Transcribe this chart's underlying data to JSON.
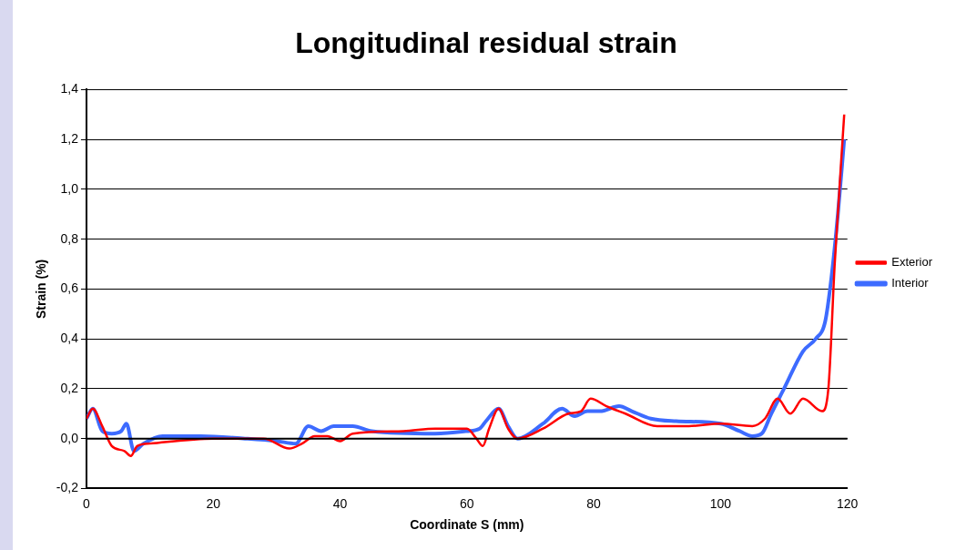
{
  "chart_data": {
    "type": "line",
    "title": "Longitudinal residual strain",
    "xlabel": "Coordinate S (mm)",
    "ylabel": "Strain (%)",
    "xlim": [
      0,
      120
    ],
    "xticks": [
      0,
      20,
      40,
      60,
      80,
      100,
      120
    ],
    "ylim": [
      -0.2,
      1.4
    ],
    "yticks": [
      {
        "value": -0.2,
        "label": "-0,2"
      },
      {
        "value": 0,
        "label": "0,0"
      },
      {
        "value": 0.2,
        "label": "0,2"
      },
      {
        "value": 0.4,
        "label": "0,4"
      },
      {
        "value": 0.6,
        "label": "0,6"
      },
      {
        "value": 0.8,
        "label": "0,8"
      },
      {
        "value": 1.0,
        "label": "1,0"
      },
      {
        "value": 1.2,
        "label": "1,2"
      },
      {
        "value": 1.4,
        "label": "1,4"
      }
    ],
    "grid": "y",
    "legend": "right",
    "marker": "none",
    "line_style": "solid",
    "series": [
      {
        "name": "Interior",
        "color": "#3d6bff",
        "x": [
          0,
          1,
          2.5,
          4,
          5.5,
          6.3,
          7.5,
          9,
          12,
          18,
          25,
          30,
          33,
          35,
          37,
          39,
          42,
          45,
          55,
          60,
          62,
          63,
          65,
          66.5,
          68,
          72,
          75,
          77,
          79,
          81,
          84,
          86,
          89,
          93,
          100,
          103,
          105,
          106.5,
          108,
          110,
          113,
          115,
          116.5,
          117.5,
          118.5,
          119.5
        ],
        "values": [
          0.08,
          0.12,
          0.03,
          0.02,
          0.03,
          0.06,
          -0.05,
          -0.02,
          0.01,
          0.01,
          0,
          -0.01,
          -0.02,
          0.05,
          0.03,
          0.05,
          0.05,
          0.03,
          0.02,
          0.03,
          0.04,
          0.07,
          0.12,
          0.05,
          0,
          0.06,
          0.12,
          0.09,
          0.11,
          0.11,
          0.13,
          0.11,
          0.08,
          0.07,
          0.06,
          0.03,
          0.01,
          0.02,
          0.1,
          0.2,
          0.35,
          0.4,
          0.47,
          0.65,
          0.9,
          1.2
        ]
      },
      {
        "name": "Exterior",
        "color": "#ff0000",
        "x": [
          0,
          1,
          2.5,
          4,
          6,
          7,
          8,
          10,
          20,
          28,
          32,
          34,
          36,
          38,
          40,
          42,
          50,
          55,
          60,
          61.5,
          62.5,
          63.5,
          65,
          66.5,
          68,
          72,
          76,
          78,
          79.5,
          82,
          85,
          90,
          95,
          100,
          105,
          107,
          109,
          111,
          113,
          116,
          117,
          118,
          119.5
        ],
        "values": [
          0.08,
          0.12,
          0.05,
          -0.03,
          -0.05,
          -0.07,
          -0.03,
          -0.02,
          0,
          0,
          -0.04,
          -0.02,
          0.01,
          0.01,
          -0.01,
          0.02,
          0.03,
          0.04,
          0.04,
          0,
          -0.03,
          0.04,
          0.12,
          0.04,
          0,
          0.04,
          0.1,
          0.11,
          0.16,
          0.13,
          0.1,
          0.05,
          0.05,
          0.06,
          0.05,
          0.08,
          0.16,
          0.1,
          0.16,
          0.11,
          0.2,
          0.7,
          1.3
        ]
      }
    ]
  }
}
